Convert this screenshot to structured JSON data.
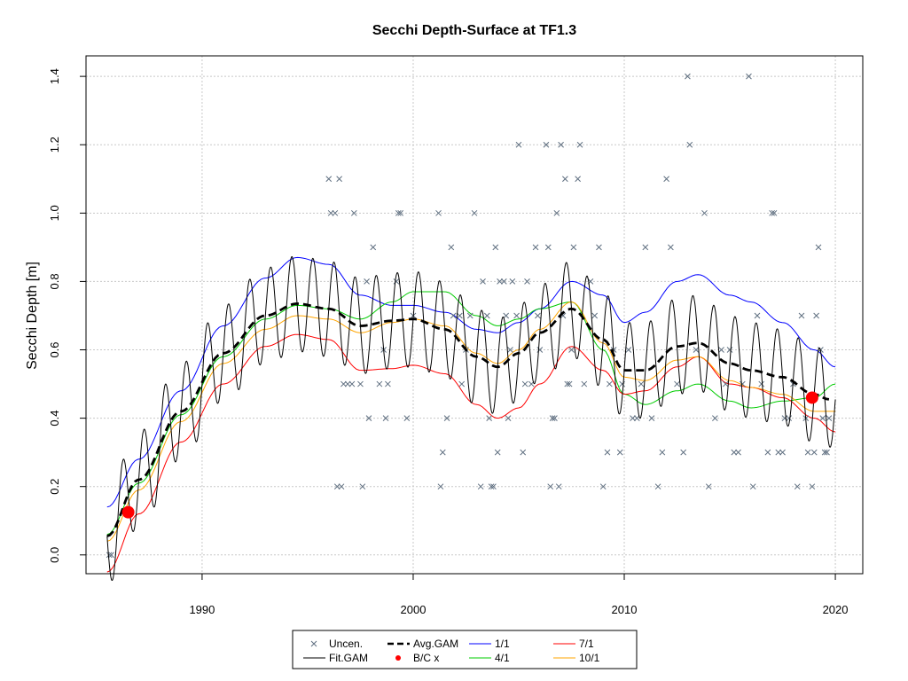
{
  "chart_data": {
    "type": "scatter",
    "title": "Secchi Depth-Surface at TF1.3",
    "xlabel": "",
    "ylabel": "Secchi Depth [m]",
    "xlim": [
      1984.5,
      2021.3
    ],
    "ylim": [
      -0.055,
      1.46
    ],
    "xticks": [
      1990,
      2000,
      2010,
      2020
    ],
    "yticks": [
      0.0,
      0.2,
      0.4,
      0.6,
      0.8,
      1.0,
      1.2,
      1.4
    ],
    "grid": true,
    "colors": {
      "uncen": "#5f6f80",
      "fit_gam": "#000000",
      "avg_gam": "#000000",
      "bc": "#ff0000",
      "p1_1": "#0000ff",
      "p4_1": "#00cc00",
      "p7_1": "#ff0000",
      "p10_1": "#ffa500",
      "grid": "#c8c8c8"
    },
    "observations": [
      {
        "x": 1985.6,
        "y": 0.0
      },
      {
        "x": 1985.7,
        "y": 0.0
      },
      {
        "x": 1996.0,
        "y": 1.1
      },
      {
        "x": 1996.1,
        "y": 1.0
      },
      {
        "x": 1996.3,
        "y": 1.0
      },
      {
        "x": 1996.5,
        "y": 1.1
      },
      {
        "x": 1996.4,
        "y": 0.2
      },
      {
        "x": 1996.6,
        "y": 0.2
      },
      {
        "x": 1996.7,
        "y": 0.5
      },
      {
        "x": 1996.9,
        "y": 0.5
      },
      {
        "x": 1997.1,
        "y": 0.5
      },
      {
        "x": 1997.2,
        "y": 1.0
      },
      {
        "x": 1997.5,
        "y": 0.5
      },
      {
        "x": 1997.6,
        "y": 0.2
      },
      {
        "x": 1997.8,
        "y": 0.8
      },
      {
        "x": 1997.9,
        "y": 0.4
      },
      {
        "x": 1998.1,
        "y": 0.9
      },
      {
        "x": 1998.4,
        "y": 0.5
      },
      {
        "x": 1998.6,
        "y": 0.6
      },
      {
        "x": 1998.7,
        "y": 0.4
      },
      {
        "x": 1998.8,
        "y": 0.5
      },
      {
        "x": 1999.2,
        "y": 0.8
      },
      {
        "x": 1999.3,
        "y": 1.0
      },
      {
        "x": 1999.4,
        "y": 1.0
      },
      {
        "x": 1999.7,
        "y": 0.4
      },
      {
        "x": 2000.0,
        "y": 0.7
      },
      {
        "x": 2001.2,
        "y": 1.0
      },
      {
        "x": 2001.3,
        "y": 0.2
      },
      {
        "x": 2001.4,
        "y": 0.3
      },
      {
        "x": 2001.6,
        "y": 0.4
      },
      {
        "x": 2001.8,
        "y": 0.9
      },
      {
        "x": 2001.9,
        "y": 0.7
      },
      {
        "x": 2002.2,
        "y": 0.7
      },
      {
        "x": 2002.3,
        "y": 0.5
      },
      {
        "x": 2002.5,
        "y": 0.6
      },
      {
        "x": 2002.7,
        "y": 0.7
      },
      {
        "x": 2002.9,
        "y": 1.0
      },
      {
        "x": 2003.2,
        "y": 0.2
      },
      {
        "x": 2003.3,
        "y": 0.8
      },
      {
        "x": 2003.5,
        "y": 0.7
      },
      {
        "x": 2003.6,
        "y": 0.4
      },
      {
        "x": 2003.7,
        "y": 0.2
      },
      {
        "x": 2003.8,
        "y": 0.2
      },
      {
        "x": 2003.9,
        "y": 0.9
      },
      {
        "x": 2004.0,
        "y": 0.3
      },
      {
        "x": 2004.1,
        "y": 0.8
      },
      {
        "x": 2004.3,
        "y": 0.8
      },
      {
        "x": 2004.4,
        "y": 0.7
      },
      {
        "x": 2004.5,
        "y": 0.4
      },
      {
        "x": 2004.6,
        "y": 0.6
      },
      {
        "x": 2004.7,
        "y": 0.8
      },
      {
        "x": 2004.9,
        "y": 0.7
      },
      {
        "x": 2005.0,
        "y": 1.2
      },
      {
        "x": 2005.2,
        "y": 0.3
      },
      {
        "x": 2005.3,
        "y": 0.5
      },
      {
        "x": 2005.4,
        "y": 0.8
      },
      {
        "x": 2005.6,
        "y": 0.5
      },
      {
        "x": 2005.8,
        "y": 0.9
      },
      {
        "x": 2005.9,
        "y": 0.7
      },
      {
        "x": 2006.0,
        "y": 0.6
      },
      {
        "x": 2006.3,
        "y": 1.2
      },
      {
        "x": 2006.4,
        "y": 0.9
      },
      {
        "x": 2006.5,
        "y": 0.2
      },
      {
        "x": 2006.6,
        "y": 0.4
      },
      {
        "x": 2006.7,
        "y": 0.4
      },
      {
        "x": 2006.8,
        "y": 1.0
      },
      {
        "x": 2006.9,
        "y": 0.2
      },
      {
        "x": 2007.0,
        "y": 1.2
      },
      {
        "x": 2007.1,
        "y": 0.7
      },
      {
        "x": 2007.2,
        "y": 1.1
      },
      {
        "x": 2007.3,
        "y": 0.5
      },
      {
        "x": 2007.4,
        "y": 0.5
      },
      {
        "x": 2007.5,
        "y": 0.6
      },
      {
        "x": 2007.6,
        "y": 0.9
      },
      {
        "x": 2007.8,
        "y": 1.1
      },
      {
        "x": 2007.9,
        "y": 1.2
      },
      {
        "x": 2008.1,
        "y": 0.5
      },
      {
        "x": 2008.4,
        "y": 0.8
      },
      {
        "x": 2008.6,
        "y": 0.7
      },
      {
        "x": 2008.8,
        "y": 0.9
      },
      {
        "x": 2009.0,
        "y": 0.2
      },
      {
        "x": 2009.2,
        "y": 0.3
      },
      {
        "x": 2009.3,
        "y": 0.5
      },
      {
        "x": 2009.5,
        "y": 0.6
      },
      {
        "x": 2009.8,
        "y": 0.3
      },
      {
        "x": 2009.9,
        "y": 0.5
      },
      {
        "x": 2010.2,
        "y": 0.6
      },
      {
        "x": 2010.4,
        "y": 0.4
      },
      {
        "x": 2010.6,
        "y": 0.4
      },
      {
        "x": 2010.8,
        "y": 0.5
      },
      {
        "x": 2011.0,
        "y": 0.9
      },
      {
        "x": 2011.3,
        "y": 0.4
      },
      {
        "x": 2011.6,
        "y": 0.2
      },
      {
        "x": 2011.8,
        "y": 0.3
      },
      {
        "x": 2012.0,
        "y": 1.1
      },
      {
        "x": 2012.2,
        "y": 0.9
      },
      {
        "x": 2012.5,
        "y": 0.5
      },
      {
        "x": 2012.8,
        "y": 0.3
      },
      {
        "x": 2013.0,
        "y": 1.4
      },
      {
        "x": 2013.1,
        "y": 1.2
      },
      {
        "x": 2013.4,
        "y": 0.6
      },
      {
        "x": 2013.8,
        "y": 1.0
      },
      {
        "x": 2014.0,
        "y": 0.2
      },
      {
        "x": 2014.3,
        "y": 0.4
      },
      {
        "x": 2014.6,
        "y": 0.6
      },
      {
        "x": 2014.8,
        "y": 0.5
      },
      {
        "x": 2015.0,
        "y": 0.6
      },
      {
        "x": 2015.2,
        "y": 0.3
      },
      {
        "x": 2015.4,
        "y": 0.3
      },
      {
        "x": 2015.6,
        "y": 0.5
      },
      {
        "x": 2015.9,
        "y": 1.4
      },
      {
        "x": 2016.1,
        "y": 0.2
      },
      {
        "x": 2016.3,
        "y": 0.7
      },
      {
        "x": 2016.5,
        "y": 0.5
      },
      {
        "x": 2016.8,
        "y": 0.3
      },
      {
        "x": 2017.0,
        "y": 1.0
      },
      {
        "x": 2017.1,
        "y": 1.0
      },
      {
        "x": 2017.3,
        "y": 0.3
      },
      {
        "x": 2017.5,
        "y": 0.3
      },
      {
        "x": 2017.6,
        "y": 0.4
      },
      {
        "x": 2017.8,
        "y": 0.4
      },
      {
        "x": 2018.0,
        "y": 0.5
      },
      {
        "x": 2018.2,
        "y": 0.2
      },
      {
        "x": 2018.4,
        "y": 0.7
      },
      {
        "x": 2018.6,
        "y": 0.4
      },
      {
        "x": 2018.7,
        "y": 0.3
      },
      {
        "x": 2018.9,
        "y": 0.2
      },
      {
        "x": 2019.0,
        "y": 0.3
      },
      {
        "x": 2019.1,
        "y": 0.7
      },
      {
        "x": 2019.2,
        "y": 0.9
      },
      {
        "x": 2019.3,
        "y": 0.6
      },
      {
        "x": 2019.4,
        "y": 0.4
      },
      {
        "x": 2019.5,
        "y": 0.3
      },
      {
        "x": 2019.6,
        "y": 0.3
      },
      {
        "x": 2019.7,
        "y": 0.4
      }
    ],
    "bc_points": [
      {
        "x": 1986.5,
        "y": 0.125
      },
      {
        "x": 2018.9,
        "y": 0.46
      }
    ],
    "fit_gam": {
      "x_range": [
        1985.5,
        2020.0
      ],
      "cycles_per_year": 1,
      "peak_phase_year_fraction": 0.25,
      "half_amplitude": 0.14
    },
    "avg_gam": {
      "x": [
        1985.5,
        1987,
        1989,
        1991,
        1993,
        1994.5,
        1996,
        1997.5,
        1999,
        2000,
        2001.5,
        2003,
        2004,
        2005,
        2006,
        2007.5,
        2009,
        2010,
        2011,
        2012.5,
        2013.5,
        2015,
        2016,
        2017.5,
        2019,
        2019.7
      ],
      "y": [
        0.055,
        0.22,
        0.42,
        0.59,
        0.7,
        0.735,
        0.72,
        0.67,
        0.685,
        0.69,
        0.66,
        0.58,
        0.55,
        0.59,
        0.65,
        0.72,
        0.63,
        0.54,
        0.54,
        0.61,
        0.62,
        0.56,
        0.54,
        0.52,
        0.47,
        0.455
      ]
    },
    "percentiles": [
      {
        "name": "1/1",
        "color": "#0000ff",
        "x": [
          1985.5,
          1987,
          1989,
          1991,
          1993,
          1994.5,
          1996,
          1997.5,
          1999,
          2000,
          2001.5,
          2003,
          2004,
          2005,
          2006,
          2007.5,
          2009,
          2010,
          2011,
          2012.5,
          2013.5,
          2015,
          2016,
          2017.5,
          2019,
          2020
        ],
        "y": [
          0.14,
          0.28,
          0.48,
          0.67,
          0.81,
          0.87,
          0.85,
          0.76,
          0.73,
          0.73,
          0.71,
          0.66,
          0.65,
          0.68,
          0.72,
          0.8,
          0.76,
          0.68,
          0.71,
          0.8,
          0.82,
          0.76,
          0.74,
          0.68,
          0.6,
          0.55
        ]
      },
      {
        "name": "4/1",
        "color": "#00cc00",
        "x": [
          1985.5,
          1987,
          1989,
          1991,
          1993,
          1994.5,
          1996,
          1997.5,
          1999,
          2000,
          2001.5,
          2003,
          2004,
          2005,
          2006,
          2007.5,
          2009,
          2010,
          2011,
          2012.5,
          2013.5,
          2015,
          2016,
          2017.5,
          2019,
          2020
        ],
        "y": [
          0.06,
          0.21,
          0.41,
          0.58,
          0.69,
          0.73,
          0.72,
          0.69,
          0.74,
          0.77,
          0.77,
          0.7,
          0.67,
          0.69,
          0.72,
          0.74,
          0.6,
          0.47,
          0.44,
          0.48,
          0.5,
          0.45,
          0.43,
          0.45,
          0.46,
          0.5
        ]
      },
      {
        "name": "7/1",
        "color": "#ff0000",
        "x": [
          1985.5,
          1987,
          1989,
          1991,
          1993,
          1994.5,
          1996,
          1997.5,
          1999,
          2000,
          2001.5,
          2003,
          2004,
          2005,
          2006,
          2007.5,
          2009,
          2010,
          2011,
          2012.5,
          2013.5,
          2015,
          2016,
          2017.5,
          2019,
          2020
        ],
        "y": [
          -0.05,
          0.12,
          0.33,
          0.5,
          0.61,
          0.645,
          0.63,
          0.54,
          0.545,
          0.555,
          0.53,
          0.44,
          0.4,
          0.43,
          0.5,
          0.61,
          0.54,
          0.47,
          0.48,
          0.55,
          0.58,
          0.5,
          0.49,
          0.46,
          0.4,
          0.36
        ]
      },
      {
        "name": "10/1",
        "color": "#ffa500",
        "x": [
          1985.5,
          1987,
          1989,
          1991,
          1993,
          1994.5,
          1996,
          1997.5,
          1999,
          2000,
          2001.5,
          2003,
          2004,
          2005,
          2006,
          2007.5,
          2009,
          2010,
          2011,
          2012.5,
          2013.5,
          2015,
          2016,
          2017.5,
          2019,
          2020
        ],
        "y": [
          0.04,
          0.19,
          0.39,
          0.56,
          0.66,
          0.7,
          0.69,
          0.65,
          0.68,
          0.69,
          0.67,
          0.59,
          0.56,
          0.6,
          0.66,
          0.74,
          0.62,
          0.52,
          0.51,
          0.57,
          0.58,
          0.51,
          0.49,
          0.47,
          0.42,
          0.42
        ]
      }
    ],
    "legend": {
      "placement": "bottom-center",
      "items": [
        {
          "label": "Uncen.",
          "symbol": "x",
          "color": "#5f6f80"
        },
        {
          "label": "Avg.GAM",
          "symbol": "dashed-line",
          "color": "#000000"
        },
        {
          "label": "1/1",
          "symbol": "line",
          "color": "#0000ff"
        },
        {
          "label": "7/1",
          "symbol": "line",
          "color": "#ff0000"
        },
        {
          "label": "Fit.GAM",
          "symbol": "line",
          "color": "#000000"
        },
        {
          "label": "B/C x",
          "symbol": "dot",
          "color": "#ff0000"
        },
        {
          "label": "4/1",
          "symbol": "line",
          "color": "#00cc00"
        },
        {
          "label": "10/1",
          "symbol": "line",
          "color": "#ffa500"
        }
      ]
    }
  }
}
